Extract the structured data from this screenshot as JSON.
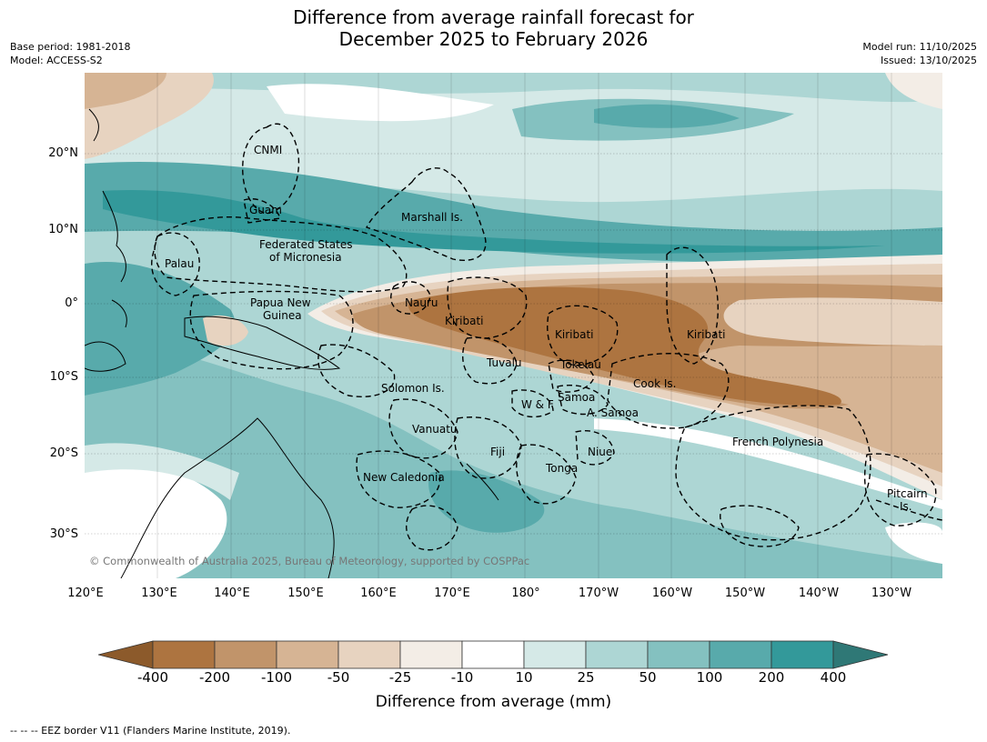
{
  "header": {
    "title_line1": "Difference from average rainfall forecast for",
    "title_line2": "December 2025 to February 2026",
    "base_period": "Base period: 1981-2018",
    "model": "Model: ACCESS-S2",
    "model_run": "Model run: 11/10/2025",
    "issued": "Issued: 13/10/2025"
  },
  "map": {
    "lat_labels": [
      "20°N",
      "10°N",
      "0°",
      "10°S",
      "20°S",
      "30°S"
    ],
    "lon_labels": [
      "120°E",
      "130°E",
      "140°E",
      "150°E",
      "160°E",
      "170°E",
      "180°",
      "170°W",
      "160°W",
      "150°W",
      "140°W",
      "130°W"
    ],
    "regions": [
      "CNMI",
      "Guam",
      "Marshall Is.",
      "Federated States",
      "of Micronesia",
      "Palau",
      "Papua New",
      "Guinea",
      "Nauru",
      "Kiribati",
      "Kiribati",
      "Kiribati",
      "Tuvalu",
      "Tokelau",
      "Cook Is.",
      "Solomon Is.",
      "Samoa",
      "W & F",
      "A. Samoa",
      "Vanuatu",
      "Fiji",
      "Niue",
      "Tonga",
      "French Polynesia",
      "New Caledonia",
      "Pitcairn",
      "Is."
    ],
    "copyright": "© Commonwealth of Australia 2025, Bureau of Meteorology, supported by COSPPac"
  },
  "colorbar": {
    "label": "Difference from average (mm)",
    "ticks": [
      "-400",
      "-200",
      "-100",
      "-50",
      "-25",
      "-10",
      "10",
      "25",
      "50",
      "100",
      "200",
      "400"
    ],
    "colors": [
      "#8c5a2b",
      "#ad7440",
      "#c1946a",
      "#d6b494",
      "#e7d3c0",
      "#f3ede6",
      "#ffffff",
      "#d5e9e7",
      "#add6d4",
      "#84c1c0",
      "#58aaab",
      "#33999a",
      "#2f7876"
    ]
  },
  "footer": {
    "text": "--  --  -- EEZ border V11 (Flanders Marine Institute, 2019)."
  }
}
